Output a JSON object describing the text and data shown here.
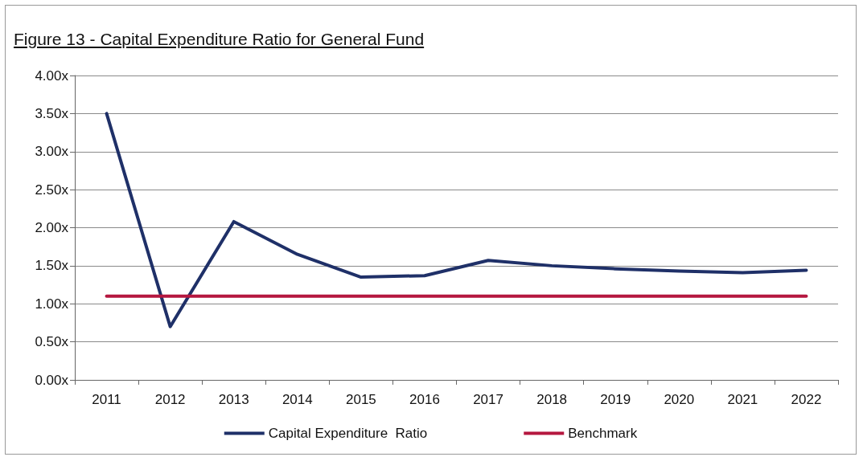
{
  "chart_data": {
    "type": "line",
    "title": "Figure 13 - Capital Expenditure Ratio for  General Fund",
    "categories": [
      "2011",
      "2012",
      "2013",
      "2014",
      "2015",
      "2016",
      "2017",
      "2018",
      "2019",
      "2020",
      "2021",
      "2022"
    ],
    "series": [
      {
        "name": "Capital Expenditure  Ratio",
        "color": "#1f3068",
        "values": [
          3.5,
          0.7,
          2.08,
          1.65,
          1.35,
          1.37,
          1.57,
          1.5,
          1.46,
          1.43,
          1.41,
          1.44
        ]
      },
      {
        "name": "Benchmark",
        "color": "#b5173f",
        "values": [
          1.1,
          1.1,
          1.1,
          1.1,
          1.1,
          1.1,
          1.1,
          1.1,
          1.1,
          1.1,
          1.1,
          1.1
        ]
      }
    ],
    "ylim": [
      0,
      4
    ],
    "yticks": [
      {
        "value": 0,
        "label": "0.00x"
      },
      {
        "value": 0.5,
        "label": "0.50x"
      },
      {
        "value": 1,
        "label": "1.00x"
      },
      {
        "value": 1.5,
        "label": "1.50x"
      },
      {
        "value": 2,
        "label": "2.00x"
      },
      {
        "value": 2.5,
        "label": "2.50x"
      },
      {
        "value": 3,
        "label": "3.00x"
      },
      {
        "value": 3.5,
        "label": "3.50x"
      },
      {
        "value": 4,
        "label": "4.00x"
      }
    ],
    "grid": "y",
    "legend": "bottom",
    "marker": "none",
    "line_style": "solid"
  }
}
